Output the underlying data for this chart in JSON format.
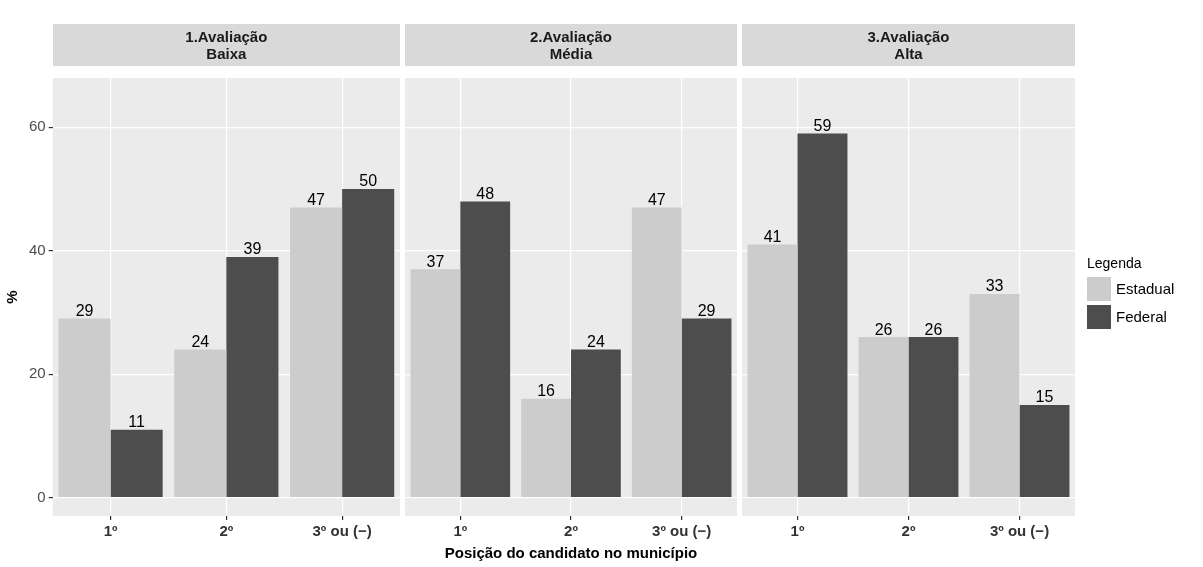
{
  "chart_data": [
    {
      "type": "bar",
      "title": "1.Avaliação\nBaixa",
      "ylabel": "%",
      "categories": [
        "1º",
        "2º",
        "3º ou (−)"
      ],
      "series": [
        {
          "color": "#cccccc",
          "values": [
            29,
            24,
            47
          ]
        },
        {
          "color": "#4d4d4d",
          "values": [
            11,
            39,
            50
          ]
        }
      ],
      "ylim": [
        -3,
        68
      ],
      "yticks": [
        0,
        20,
        40,
        60
      ],
      "grid": true,
      "data_labels": true
    },
    {
      "type": "bar",
      "title": "2.Avaliação\nMédia",
      "xlabel": "Posição do candidato no município",
      "categories": [
        "1º",
        "2º",
        "3º ou (−)"
      ],
      "series": [
        {
          "color": "#cccccc",
          "values": [
            37,
            16,
            47
          ]
        },
        {
          "color": "#4d4d4d",
          "values": [
            48,
            24,
            29
          ]
        }
      ],
      "ylim": [
        -3,
        68
      ],
      "yticks": [
        0,
        20,
        40,
        60
      ],
      "grid": true,
      "data_labels": true,
      "tick_labels": "x"
    },
    {
      "type": "bar",
      "title": "3.Avaliação\nAlta",
      "legend_title": "Legenda",
      "categories": [
        "1º",
        "2º",
        "3º ou (−)"
      ],
      "series": [
        {
          "name": "Estadual",
          "color": "#cccccc",
          "values": [
            41,
            26,
            33
          ]
        },
        {
          "name": "Federal",
          "color": "#4d4d4d",
          "values": [
            59,
            26,
            15
          ]
        }
      ],
      "ylim": [
        -3,
        68
      ],
      "yticks": [
        0,
        20,
        40,
        60
      ],
      "grid": true,
      "data_labels": true,
      "tick_labels": "x",
      "legend": "right"
    }
  ]
}
